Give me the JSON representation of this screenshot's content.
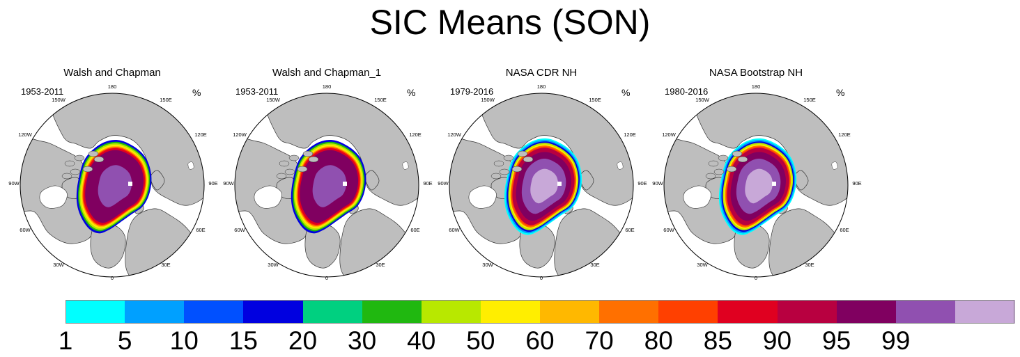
{
  "title": "SIC Means (SON)",
  "unit": "%",
  "panels": [
    {
      "title": "Walsh and Chapman",
      "period": "1953-2011"
    },
    {
      "title": "Walsh and Chapman_1",
      "period": "1953-2011"
    },
    {
      "title": "NASA CDR NH",
      "period": "1979-2016"
    },
    {
      "title": "NASA Bootstrap NH",
      "period": "1980-2016"
    }
  ],
  "longitude_labels": {
    "l180": "180",
    "l150e": "150E",
    "l120e": "120E",
    "l90e": "90E",
    "l60e": "60E",
    "l30e": "30E",
    "l0": "0",
    "l30w": "30W",
    "l60w": "60W",
    "l90w": "90W",
    "l120w": "120W",
    "l150w": "150W"
  },
  "colors": {
    "land": "#bebebe",
    "ocean": "#ffffff",
    "boundary": "#000000"
  },
  "colorbar": {
    "tick_labels": [
      "1",
      "5",
      "10",
      "15",
      "20",
      "30",
      "40",
      "50",
      "60",
      "70",
      "80",
      "85",
      "90",
      "95",
      "99"
    ],
    "colors": [
      "#00ffff",
      "#00a0ff",
      "#0050ff",
      "#0000e0",
      "#00d080",
      "#20b810",
      "#b8e800",
      "#ffee00",
      "#ffb800",
      "#ff7000",
      "#ff4000",
      "#e00020",
      "#b80040",
      "#800060",
      "#9050b0",
      "#c8a8d8"
    ]
  }
}
